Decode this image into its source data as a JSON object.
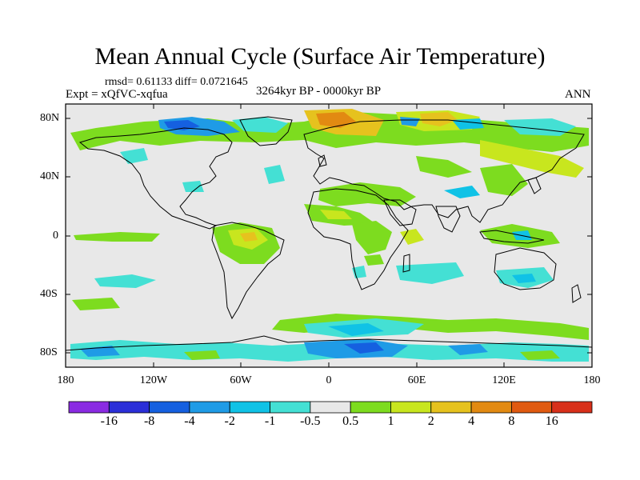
{
  "title": "Mean Annual Cycle (Surface Air Temperature)",
  "stats": "rmsd= 0.61133 diff= 0.0721645",
  "experiment": "Expt = xQfVC-xqfua",
  "period": "3264kyr BP - 0000kyr BP",
  "season": "ANN",
  "lat_labels": [
    "80N",
    "40N",
    "0",
    "40S",
    "80S"
  ],
  "lon_labels": [
    "180",
    "120W",
    "60W",
    "0",
    "60E",
    "120E",
    "180"
  ],
  "colorbar": {
    "labels": [
      "-16",
      "-8",
      "-4",
      "-2",
      "-1",
      "-0.5",
      "0.5",
      "1",
      "2",
      "4",
      "8",
      "16"
    ],
    "colors": [
      "#8a2be2",
      "#2b2fd8",
      "#1560e0",
      "#1f9be6",
      "#10c2e6",
      "#44e0d4",
      "#e8e8e8",
      "#7ddc1f",
      "#c8e61e",
      "#e6c21e",
      "#e28a12",
      "#e05a10",
      "#d8301a"
    ]
  },
  "map_colors": {
    "ocean": "#e8e8e8",
    "coast": "#000000"
  }
}
